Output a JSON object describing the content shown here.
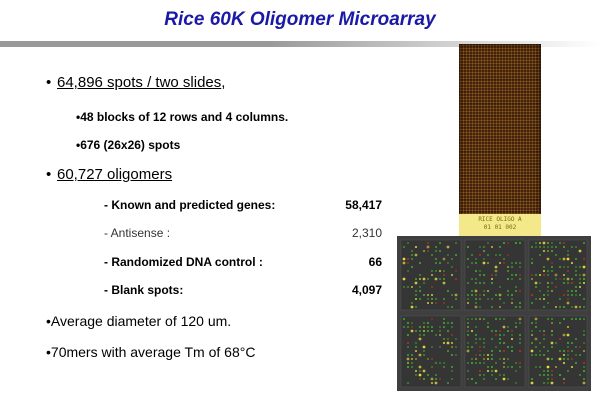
{
  "slide": {
    "title": "Rice 60K Oligomer Microarray",
    "bullets": {
      "spots": "64,896 spots / two slides",
      "spots_suffix": ",",
      "blocks": "48 blocks of 12 rows and 4 columns.",
      "block_spots": "676 (26x26) spots",
      "oligomers": "60,727 oligomers",
      "breakdown": [
        {
          "label": "-  Known and predicted genes:",
          "value": "58,417",
          "bold": true
        },
        {
          "label": "-  Antisense :",
          "value": "2,310",
          "bold": false
        },
        {
          "label": "-  Randomized DNA control :",
          "value": "66",
          "bold": true
        },
        {
          "label": "-  Blank spots:",
          "value": "4,097",
          "bold": true
        }
      ],
      "diameter": "Average diameter of 120 um.",
      "mers": "70mers with average Tm of 68°C"
    },
    "images": {
      "slide_label_line1": "RICE OLIGO A",
      "slide_label_line2": "01 01 002",
      "colors": {
        "title": "#1a1aa6",
        "slide_background": "#3a1a0c",
        "label_background": "#f4e98a",
        "array_background": "#3f3f3f",
        "spot_green": "#3cbd2a",
        "spot_yellow": "#e8e23a",
        "spot_red": "#c9301f"
      }
    }
  }
}
